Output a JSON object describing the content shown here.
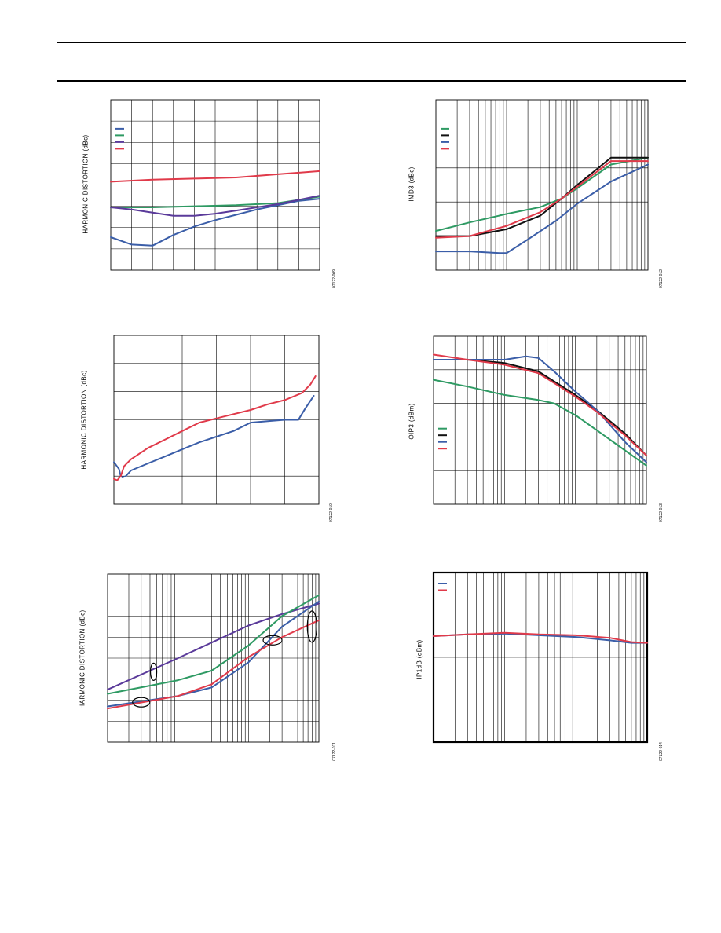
{
  "colors": {
    "blue": "#3b5ea8",
    "green": "#2e9a63",
    "purple": "#5a3a9a",
    "red": "#e03a4a",
    "black": "#111111",
    "grid": "#000000"
  },
  "chart_data": [
    {
      "id": "c1",
      "type": "line",
      "title": "",
      "xlabel": "",
      "ylabel": "HARMONIC DISTORTION (dBc)",
      "figure_id": "07122-009",
      "xscale": "linear",
      "xlim": [
        0,
        10
      ],
      "ylim": [
        0,
        8
      ],
      "xgrid": 10,
      "ygrid": 8,
      "legend": {
        "position": "top-left",
        "colors": [
          "blue",
          "green",
          "purple",
          "red"
        ]
      },
      "series": [
        {
          "color": "blue",
          "x": [
            0,
            1,
            2,
            3,
            4,
            5,
            6,
            7,
            8,
            9,
            10
          ],
          "y": [
            1.55,
            1.2,
            1.15,
            1.65,
            2.05,
            2.35,
            2.6,
            2.85,
            3.05,
            3.25,
            3.35
          ]
        },
        {
          "color": "green",
          "x": [
            0,
            2,
            4,
            6,
            8,
            10
          ],
          "y": [
            2.95,
            2.95,
            3.0,
            3.05,
            3.15,
            3.45
          ]
        },
        {
          "color": "purple",
          "x": [
            0,
            1,
            2,
            3,
            4,
            5,
            6,
            7,
            8,
            9,
            10
          ],
          "y": [
            2.95,
            2.85,
            2.7,
            2.55,
            2.55,
            2.65,
            2.8,
            2.95,
            3.1,
            3.3,
            3.5
          ]
        },
        {
          "color": "red",
          "x": [
            0,
            2,
            4,
            6,
            8,
            10
          ],
          "y": [
            4.15,
            4.25,
            4.3,
            4.35,
            4.5,
            4.65
          ]
        }
      ]
    },
    {
      "id": "c2",
      "type": "line",
      "title": "",
      "xlabel": "",
      "ylabel": "IMD3 (dBc)",
      "figure_id": "07122-012",
      "xscale": "log",
      "xlim": [
        1,
        1000
      ],
      "ylim": [
        0,
        5
      ],
      "ygrid": 5,
      "legend": {
        "position": "top-left",
        "colors": [
          "green",
          "black",
          "blue",
          "red"
        ]
      },
      "series": [
        {
          "color": "green",
          "x": [
            1,
            3,
            10,
            30,
            60,
            100,
            300,
            1000
          ],
          "y": [
            1.15,
            1.4,
            1.65,
            1.85,
            2.1,
            2.4,
            3.1,
            3.3
          ]
        },
        {
          "color": "black",
          "x": [
            1,
            3,
            10,
            30,
            60,
            100,
            300,
            1000
          ],
          "y": [
            1.0,
            1.0,
            1.2,
            1.6,
            2.1,
            2.5,
            3.3,
            3.3
          ]
        },
        {
          "color": "blue",
          "x": [
            1,
            3,
            8,
            10,
            20,
            50,
            100,
            300,
            1000
          ],
          "y": [
            0.55,
            0.55,
            0.5,
            0.5,
            0.9,
            1.45,
            1.95,
            2.6,
            3.1
          ]
        },
        {
          "color": "red",
          "x": [
            1,
            3,
            10,
            30,
            60,
            100,
            300,
            1000
          ],
          "y": [
            0.95,
            1.0,
            1.3,
            1.7,
            2.1,
            2.45,
            3.2,
            3.2
          ]
        }
      ]
    },
    {
      "id": "c3",
      "type": "line",
      "title": "",
      "xlabel": "",
      "ylabel": "HARMONIC DISTORTION (dBc)",
      "figure_id": "07122-010",
      "xscale": "linear",
      "xlim": [
        0,
        6
      ],
      "ylim": [
        0,
        6
      ],
      "xgrid": 6,
      "ygrid": 6,
      "legend": null,
      "series": [
        {
          "color": "blue",
          "x": [
            0,
            0.15,
            0.2,
            0.25,
            0.35,
            0.5,
            1,
            1.5,
            2,
            2.5,
            3,
            3.5,
            4,
            4.5,
            5,
            5.4,
            5.6,
            5.85
          ],
          "y": [
            1.5,
            1.25,
            1.0,
            0.95,
            1.0,
            1.2,
            1.45,
            1.7,
            1.95,
            2.2,
            2.4,
            2.6,
            2.9,
            2.95,
            3.0,
            3.0,
            3.4,
            3.85
          ]
        },
        {
          "color": "red",
          "x": [
            0,
            0.1,
            0.2,
            0.3,
            0.5,
            1,
            1.5,
            2,
            2.5,
            3,
            3.5,
            4,
            4.5,
            5,
            5.5,
            5.75,
            5.9
          ],
          "y": [
            0.9,
            0.85,
            1.0,
            1.35,
            1.6,
            2.0,
            2.3,
            2.6,
            2.9,
            3.05,
            3.2,
            3.35,
            3.55,
            3.7,
            3.95,
            4.25,
            4.55
          ]
        }
      ]
    },
    {
      "id": "c4",
      "type": "line",
      "title": "",
      "xlabel": "",
      "ylabel": "OIP3 (dBm)",
      "figure_id": "07122-013",
      "xscale": "log",
      "xlim": [
        1,
        1000
      ],
      "ylim": [
        0,
        5
      ],
      "ygrid": 5,
      "legend": {
        "position": "middle-left",
        "colors": [
          "green",
          "black",
          "blue",
          "red"
        ]
      },
      "series": [
        {
          "color": "green",
          "x": [
            1,
            3,
            10,
            30,
            50,
            100,
            200,
            500,
            1000
          ],
          "y": [
            3.7,
            3.5,
            3.25,
            3.1,
            3.0,
            2.65,
            2.2,
            1.6,
            1.15
          ]
        },
        {
          "color": "black",
          "x": [
            1,
            3,
            10,
            30,
            60,
            100,
            200,
            500,
            1000
          ],
          "y": [
            4.3,
            4.3,
            4.2,
            3.95,
            3.55,
            3.25,
            2.8,
            2.1,
            1.45
          ]
        },
        {
          "color": "blue",
          "x": [
            1,
            3,
            10,
            20,
            30,
            50,
            100,
            200,
            500,
            1000
          ],
          "y": [
            4.3,
            4.3,
            4.3,
            4.4,
            4.35,
            3.95,
            3.35,
            2.8,
            1.85,
            1.25
          ]
        },
        {
          "color": "red",
          "x": [
            1,
            3,
            10,
            30,
            60,
            100,
            200,
            500,
            1000
          ],
          "y": [
            4.45,
            4.3,
            4.15,
            3.9,
            3.5,
            3.2,
            2.75,
            2.05,
            1.45
          ]
        }
      ]
    },
    {
      "id": "c5",
      "type": "line",
      "title": "",
      "xlabel": "",
      "ylabel": "HARMONIC DISTORTION (dBc)",
      "figure_id": "07122-011",
      "xscale": "log",
      "xlim": [
        1,
        1000
      ],
      "ylim": [
        0,
        8
      ],
      "ygrid": 8,
      "legend": null,
      "series": [
        {
          "color": "purple",
          "x": [
            1,
            10,
            100,
            300,
            1000
          ],
          "y": [
            2.5,
            4.0,
            5.55,
            6.1,
            6.6
          ]
        },
        {
          "color": "green",
          "x": [
            1,
            10,
            30,
            100,
            300,
            1000
          ],
          "y": [
            2.3,
            2.95,
            3.4,
            4.6,
            6.0,
            7.0
          ]
        },
        {
          "color": "blue",
          "x": [
            1,
            10,
            30,
            100,
            300,
            1000
          ],
          "y": [
            1.7,
            2.2,
            2.6,
            3.8,
            5.5,
            6.7
          ]
        },
        {
          "color": "red",
          "x": [
            1,
            10,
            30,
            100,
            300,
            1000
          ],
          "y": [
            1.6,
            2.2,
            2.75,
            4.05,
            5.0,
            5.8
          ]
        }
      ],
      "annotations": [
        {
          "shape": "ellipse",
          "x": 4.5,
          "y": 3.35
        },
        {
          "shape": "ellipse",
          "x": 3.0,
          "y": 1.9
        },
        {
          "shape": "ellipse",
          "x": 220,
          "y": 4.85
        },
        {
          "shape": "ellipse",
          "x": 800,
          "y": 5.5
        }
      ]
    },
    {
      "id": "c6",
      "type": "line",
      "title": "",
      "xlabel": "",
      "ylabel": "IP1dB (dBm)",
      "figure_id": "07122-014",
      "xscale": "log",
      "xlim": [
        1,
        1000
      ],
      "ylim": [
        0,
        2
      ],
      "ygrid": 2,
      "frame": "heavy",
      "legend": {
        "position": "top-left",
        "colors": [
          "blue",
          "red"
        ]
      },
      "series": [
        {
          "color": "blue",
          "x": [
            1,
            3,
            10,
            30,
            100,
            300,
            600,
            1000
          ],
          "y": [
            1.25,
            1.27,
            1.28,
            1.26,
            1.24,
            1.2,
            1.17,
            1.17
          ]
        },
        {
          "color": "red",
          "x": [
            1,
            3,
            10,
            30,
            100,
            300,
            600,
            1000
          ],
          "y": [
            1.25,
            1.27,
            1.29,
            1.27,
            1.26,
            1.23,
            1.18,
            1.17
          ]
        }
      ]
    }
  ]
}
